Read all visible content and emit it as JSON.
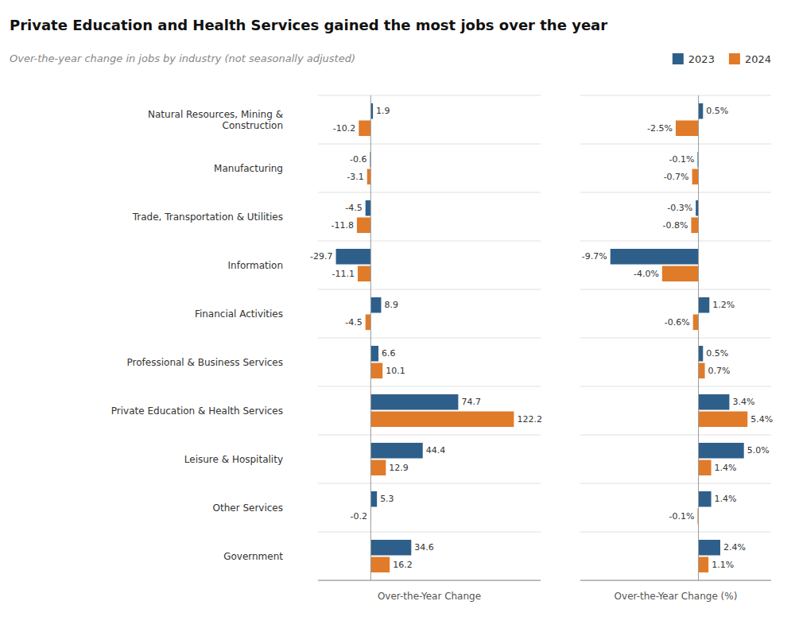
{
  "chart_data": [
    {
      "type": "bar",
      "orientation": "horizontal",
      "title": "Private Education and Health Services gained the most jobs over the year",
      "subtitle": "Over-the-year change in jobs by industry (not seasonally adjusted)",
      "xlabel": "Over-the-Year Change",
      "categories": [
        "Natural Resources, Mining &\nConstruction",
        "Manufacturing",
        "Trade, Transportation & Utilities",
        "Information",
        "Financial Activities",
        "Professional & Business Services",
        "Private Education & Health Services",
        "Leisure & Hospitality",
        "Other Services",
        "Government"
      ],
      "series": [
        {
          "name": "2023",
          "color": "#2E5F8A",
          "values": [
            1.9,
            -0.6,
            -4.5,
            -29.7,
            8.9,
            6.6,
            74.7,
            44.4,
            5.3,
            34.6
          ]
        },
        {
          "name": "2024",
          "color": "#E07B2A",
          "values": [
            -10.2,
            -3.1,
            -11.8,
            -11.1,
            -4.5,
            10.1,
            122.2,
            12.9,
            -0.2,
            16.2
          ]
        }
      ],
      "xlim": [
        -45,
        145
      ],
      "xticks": [],
      "tick_labels": "y",
      "grid": true,
      "data_labels": true,
      "legend": "upper right"
    },
    {
      "type": "bar",
      "orientation": "horizontal",
      "xlabel": "Over-the-Year Change (%)",
      "categories": [
        "Natural Resources, Mining &\nConstruction",
        "Manufacturing",
        "Trade, Transportation & Utilities",
        "Information",
        "Financial Activities",
        "Professional & Business Services",
        "Private Education & Health Services",
        "Leisure & Hospitality",
        "Other Services",
        "Government"
      ],
      "series": [
        {
          "color": "#2E5F8A",
          "values": [
            0.5,
            -0.1,
            -0.3,
            -9.7,
            1.2,
            0.5,
            3.4,
            5.0,
            1.4,
            2.4
          ],
          "value_labels": [
            "0.5%",
            "-0.1%",
            "-0.3%",
            "-9.7%",
            "1.2%",
            "0.5%",
            "3.4%",
            "5.0%",
            "1.4%",
            "2.4%"
          ]
        },
        {
          "color": "#E07B2A",
          "values": [
            -2.5,
            -0.7,
            -0.8,
            -4.0,
            -0.6,
            0.7,
            5.4,
            1.4,
            -0.1,
            1.1
          ],
          "value_labels": [
            "-2.5%",
            "-0.7%",
            "-0.8%",
            "-4.0%",
            "-0.6%",
            "0.7%",
            "5.4%",
            "1.4%",
            "-0.1%",
            "1.1%"
          ]
        }
      ],
      "xlim": [
        -13,
        8
      ],
      "xticks": [],
      "tick_labels": false,
      "grid": true,
      "data_labels": true
    }
  ]
}
